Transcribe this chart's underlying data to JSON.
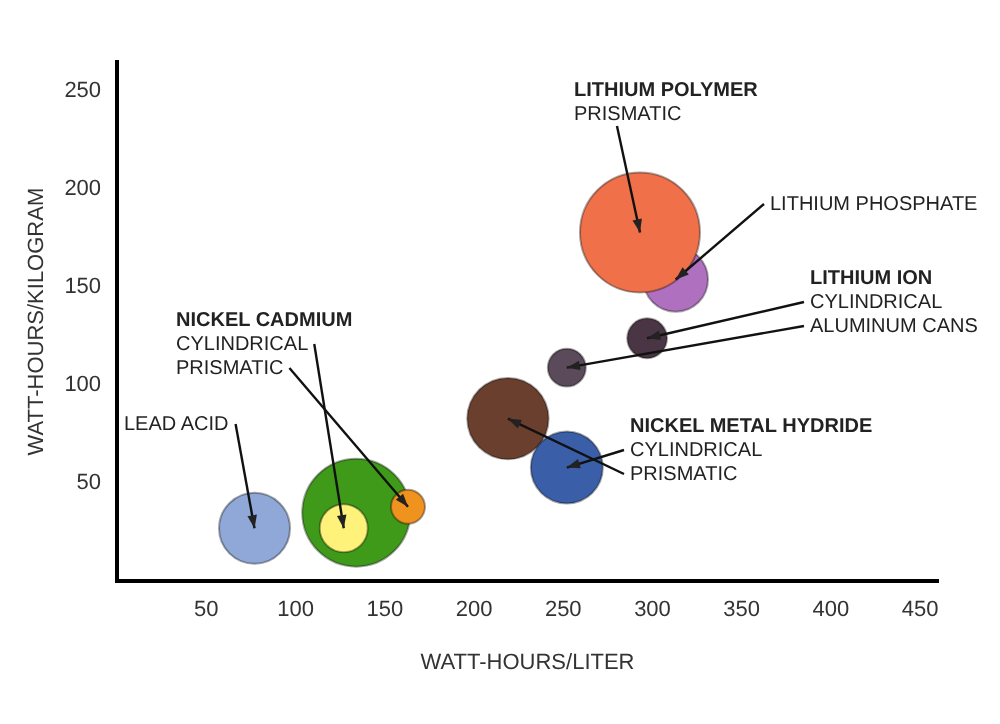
{
  "chart_data": {
    "type": "bubble",
    "xlabel": "WATT-HOURS/LITER",
    "ylabel": "WATT-HOURS/KILOGRAM",
    "x": [
      77,
      134,
      127,
      163,
      219,
      252,
      297,
      252,
      313,
      293
    ],
    "values": [
      27,
      35,
      27,
      38,
      83,
      58,
      124,
      109,
      154,
      178
    ],
    "sizes": [
      0.35,
      0.81,
      0.16,
      0.08,
      0.46,
      0.36,
      0.11,
      0.1,
      0.29,
      1
    ],
    "colors": [
      "#8fa8d8",
      "#3f9a1a",
      "#fff27a",
      "#f0921e",
      "#6b3f2e",
      "#3a5fa8",
      "#4a3545",
      "#5a4a5a",
      "#b070c0",
      "#f0704a"
    ],
    "xlim": [
      0,
      460
    ],
    "ylim": [
      0,
      265
    ],
    "xticks": [
      50,
      100,
      150,
      200,
      250,
      300,
      350,
      400,
      450
    ],
    "yticks": [
      50,
      100,
      150,
      200,
      250
    ],
    "grid": false,
    "legend": false,
    "annotations": [
      "LITHIUM POLYMER",
      {
        "text": "PRISMATIC",
        "x": 293,
        "y": 178
      },
      {
        "text": "LITHIUM PHOSPHATE",
        "x": 313,
        "y": 154
      },
      "LITHIUM ION",
      {
        "text": "CYLINDRICAL",
        "x": 297,
        "y": 124
      },
      {
        "text": "ALUMINUM CANS",
        "x": 252,
        "y": 109
      },
      "NICKEL METAL HYDRIDE",
      {
        "text": "CYLINDRICAL",
        "x": 252,
        "y": 58
      },
      {
        "text": "PRISMATIC",
        "x": 219,
        "y": 83
      },
      "NICKEL CADMIUM",
      {
        "text": "CYLINDRICAL",
        "x": 127,
        "y": 27
      },
      {
        "text": "PRISMATIC",
        "x": 163,
        "y": 38
      },
      {
        "text": "LEAD ACID",
        "x": 77,
        "y": 27
      }
    ]
  }
}
